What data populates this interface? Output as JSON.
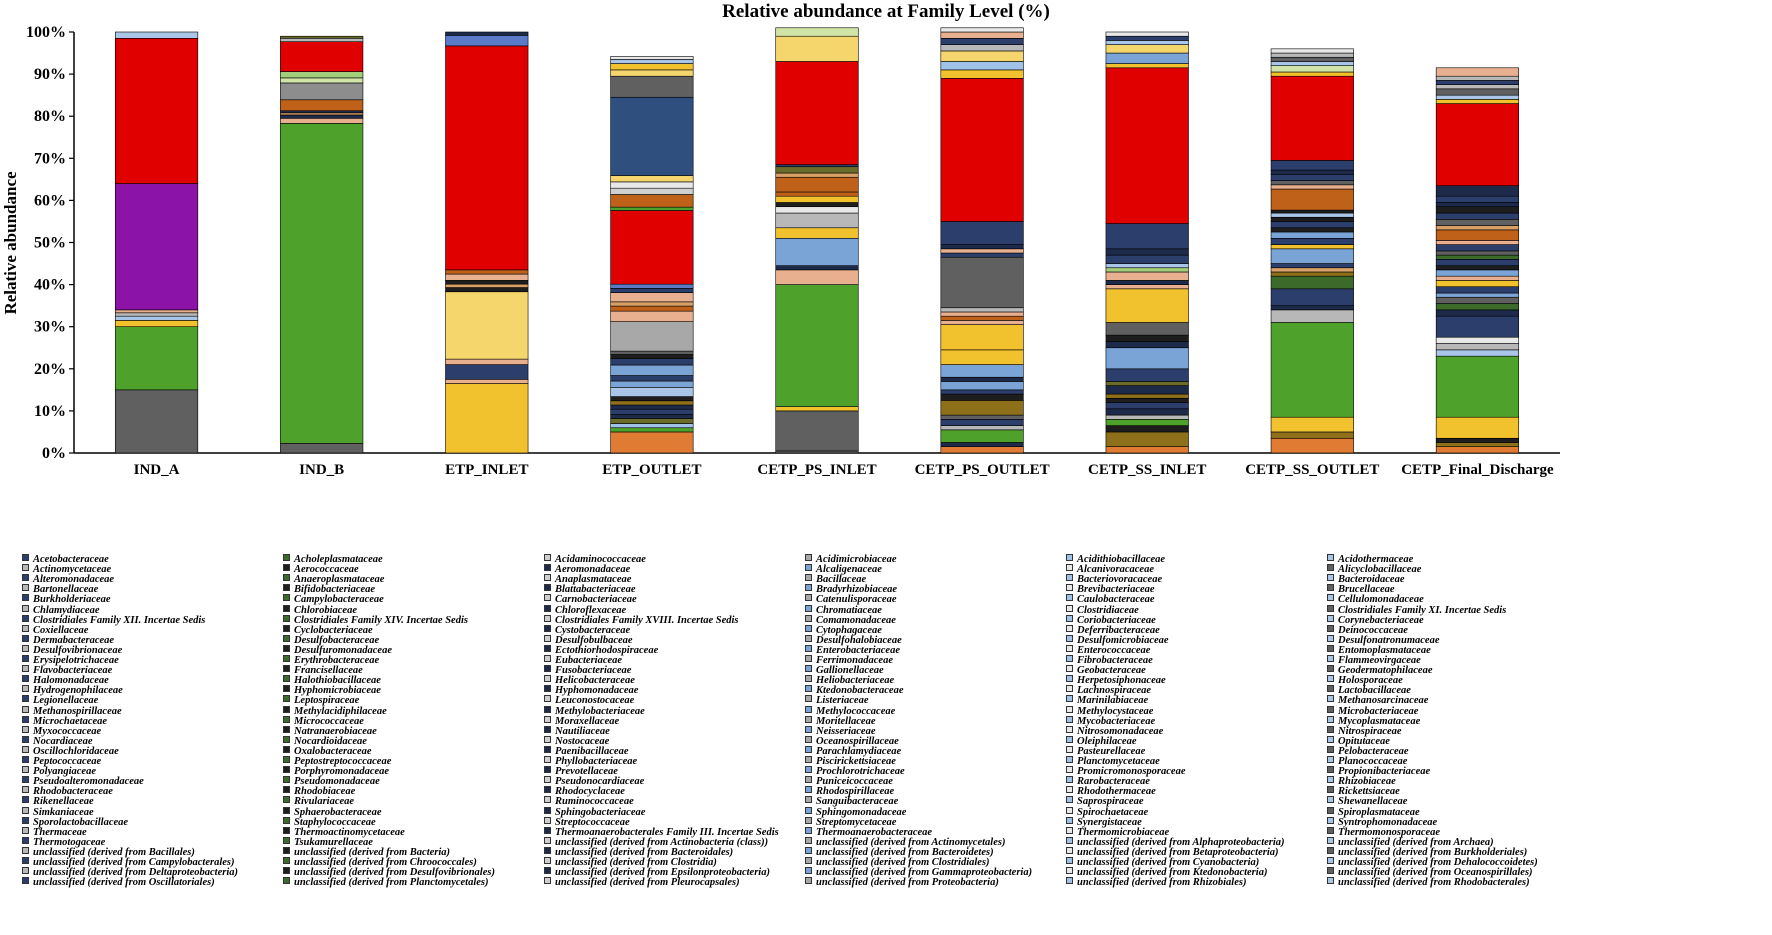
{
  "chart_data": {
    "type": "bar",
    "stacked": true,
    "title": "Relative abundance at Family Level (%)",
    "xlabel": "",
    "ylabel": "Relative abundance",
    "ylim": [
      0,
      100
    ],
    "yticks": [
      "0%",
      "10%",
      "20%",
      "30%",
      "40%",
      "50%",
      "60%",
      "70%",
      "80%",
      "90%",
      "100%"
    ],
    "legend_position": "bottom",
    "categories": [
      "IND_A",
      "IND_B",
      "ETP_INLET",
      "ETP_OUTLET",
      "CETP_PS_INLET",
      "CETP_PS_OUTLET",
      "CETP_SS_INLET",
      "CETP_SS_OUTLET",
      "CETP_Final_Discharge"
    ],
    "stacks": [
      [
        [
          15,
          "#606060"
        ],
        [
          15,
          "#4ea12a"
        ],
        [
          1.5,
          "#f2c12e"
        ],
        [
          1,
          "#a9c6e8"
        ],
        [
          0.8,
          "#b8b8b8"
        ],
        [
          0.7,
          "#e8b08e"
        ],
        [
          30,
          "#8b13a8"
        ],
        [
          34.5,
          "#e00000"
        ],
        [
          1.5,
          "#a9c6e8"
        ]
      ],
      [
        [
          2.3,
          "#606060"
        ],
        [
          76,
          "#4ea12a"
        ],
        [
          1.2,
          "#e8b08e"
        ],
        [
          0.8,
          "#1e2a4a"
        ],
        [
          0.5,
          "#d9a066"
        ],
        [
          0.5,
          "#1e2a4a"
        ],
        [
          2.6,
          "#c0611a"
        ],
        [
          4,
          "#8d8d8d"
        ],
        [
          1.2,
          "#d0e4a8"
        ],
        [
          1.5,
          "#a4cf7a"
        ],
        [
          7.1,
          "#e00000"
        ],
        [
          0.8,
          "#b8b8b8"
        ],
        [
          0.5,
          "#6b6b2a"
        ]
      ],
      [
        [
          16.5,
          "#f2c12e"
        ],
        [
          1,
          "#e8b08e"
        ],
        [
          3.5,
          "#2c3e6c"
        ],
        [
          1.3,
          "#e8b08e"
        ],
        [
          16,
          "#f5d66c"
        ],
        [
          1,
          "#1e1e1e"
        ],
        [
          0.8,
          "#d9a066"
        ],
        [
          0.9,
          "#1e1e1e"
        ],
        [
          1.5,
          "#e8b08e"
        ],
        [
          1,
          "#c0611a"
        ],
        [
          53.2,
          "#e00000"
        ],
        [
          2.5,
          "#5b7bc8"
        ],
        [
          0.8,
          "#1e2a4a"
        ]
      ],
      [
        [
          5,
          "#e07b33"
        ],
        [
          1,
          "#4ea12a"
        ],
        [
          1,
          "#9fc2e8"
        ],
        [
          1.2,
          "#6b6b2a"
        ],
        [
          1,
          "#1e2a4a"
        ],
        [
          1.2,
          "#2c3e6c"
        ],
        [
          1,
          "#1e2a4a"
        ],
        [
          1,
          "#8e6f1a"
        ],
        [
          1,
          "#1e1e1e"
        ],
        [
          2.2,
          "#a9c6e8"
        ],
        [
          1.5,
          "#7aa3d6"
        ],
        [
          1.3,
          "#2c3e6c"
        ],
        [
          2.5,
          "#7aa3d6"
        ],
        [
          1.5,
          "#2c3e6c"
        ],
        [
          1,
          "#1e1e1e"
        ],
        [
          0.8,
          "#606060"
        ],
        [
          7,
          "#a8a8a8"
        ],
        [
          2.5,
          "#e8b08e"
        ],
        [
          1.2,
          "#c0611a"
        ],
        [
          1,
          "#d9a066"
        ],
        [
          2.2,
          "#e8b08e"
        ],
        [
          1,
          "#2c3e6c"
        ],
        [
          1,
          "#5b7bc8"
        ],
        [
          17.5,
          "#e00000"
        ],
        [
          0.8,
          "#4ea12a"
        ],
        [
          3,
          "#c0611a"
        ],
        [
          1.5,
          "#cfcfcf"
        ],
        [
          1.5,
          "#e8e8e8"
        ],
        [
          1.5,
          "#f5d66c"
        ],
        [
          18.6,
          "#2f4f7f"
        ],
        [
          5,
          "#606060"
        ],
        [
          1.5,
          "#f5d66c"
        ],
        [
          1.5,
          "#f2c12e"
        ],
        [
          1,
          "#a9c6e8"
        ],
        [
          0.7,
          "#e8e8e8"
        ]
      ],
      [
        [
          0.5,
          "#606060"
        ],
        [
          9.5,
          "#606060"
        ],
        [
          1,
          "#f2c12e"
        ],
        [
          29,
          "#4ea12a"
        ],
        [
          3.5,
          "#e8b08e"
        ],
        [
          1,
          "#1e2a4a"
        ],
        [
          6.5,
          "#7aa3d6"
        ],
        [
          2.5,
          "#f2c12e"
        ],
        [
          3.5,
          "#b8b8b8"
        ],
        [
          1.5,
          "#e8e8e8"
        ],
        [
          1,
          "#1e1e1e"
        ],
        [
          1.5,
          "#f2c12e"
        ],
        [
          1,
          "#c0611a"
        ],
        [
          3.5,
          "#c0611a"
        ],
        [
          1,
          "#d9a066"
        ],
        [
          1.5,
          "#6b6b2a"
        ],
        [
          0.5,
          "#2c3e6c"
        ],
        [
          24.5,
          "#e00000"
        ],
        [
          6,
          "#f5d66c"
        ],
        [
          2,
          "#d0e4a8"
        ]
      ],
      [
        [
          1.5,
          "#e07b33"
        ],
        [
          1,
          "#1e2a4a"
        ],
        [
          3,
          "#4ea12a"
        ],
        [
          1,
          "#b8b8b8"
        ],
        [
          1.5,
          "#2c3e6c"
        ],
        [
          1,
          "#606060"
        ],
        [
          3.5,
          "#8e6f1a"
        ],
        [
          1.5,
          "#1e1e1e"
        ],
        [
          1,
          "#2c3e6c"
        ],
        [
          2,
          "#7aa3d6"
        ],
        [
          1,
          "#1e2a4a"
        ],
        [
          3,
          "#7aa3d6"
        ],
        [
          3.5,
          "#f2c12e"
        ],
        [
          6,
          "#f2c12e"
        ],
        [
          1,
          "#e8b08e"
        ],
        [
          1,
          "#c0611a"
        ],
        [
          1,
          "#e8b08e"
        ],
        [
          1,
          "#b8b8b8"
        ],
        [
          12,
          "#606060"
        ],
        [
          1,
          "#2c3e6c"
        ],
        [
          1,
          "#e8b08e"
        ],
        [
          1,
          "#1e2a4a"
        ],
        [
          5.5,
          "#2c3e6c"
        ],
        [
          34,
          "#e00000"
        ],
        [
          2,
          "#f2c12e"
        ],
        [
          2,
          "#9fc2e8"
        ],
        [
          2.5,
          "#f5d66c"
        ],
        [
          1.5,
          "#b8b8b8"
        ],
        [
          1.5,
          "#2c3e6c"
        ],
        [
          1.5,
          "#e8b08e"
        ],
        [
          1,
          "#e8e8e8"
        ]
      ],
      [
        [
          1.5,
          "#e07b33"
        ],
        [
          3.5,
          "#8e6f1a"
        ],
        [
          1.5,
          "#1e1e1e"
        ],
        [
          1.5,
          "#4ea12a"
        ],
        [
          1,
          "#b8b8b8"
        ],
        [
          1.5,
          "#1e2a4a"
        ],
        [
          1.5,
          "#2c3e6c"
        ],
        [
          1,
          "#1e1e1e"
        ],
        [
          1,
          "#8e6f1a"
        ],
        [
          2,
          "#1e2a4a"
        ],
        [
          1,
          "#6b6b2a"
        ],
        [
          3,
          "#2c3e6c"
        ],
        [
          5,
          "#7aa3d6"
        ],
        [
          1.5,
          "#1e2a4a"
        ],
        [
          1.5,
          "#1e1e1e"
        ],
        [
          3,
          "#606060"
        ],
        [
          8,
          "#f2c12e"
        ],
        [
          1,
          "#e8b08e"
        ],
        [
          1,
          "#1e2a4a"
        ],
        [
          2,
          "#e8b08e"
        ],
        [
          1,
          "#a4cf7a"
        ],
        [
          1,
          "#a9c6e8"
        ],
        [
          2,
          "#2c3e6c"
        ],
        [
          1.5,
          "#1e2a4a"
        ],
        [
          6,
          "#2c3e6c"
        ],
        [
          37,
          "#e00000"
        ],
        [
          1,
          "#f2c12e"
        ],
        [
          2.5,
          "#7aa3d6"
        ],
        [
          2,
          "#f5d66c"
        ],
        [
          1,
          "#a9c6e8"
        ],
        [
          1,
          "#2c3e6c"
        ],
        [
          1,
          "#e8e8e8"
        ]
      ],
      [
        [
          3.5,
          "#e07b33"
        ],
        [
          1.5,
          "#8e6f1a"
        ],
        [
          3.5,
          "#f2c12e"
        ],
        [
          22.5,
          "#4ea12a"
        ],
        [
          3,
          "#b8b8b8"
        ],
        [
          1,
          "#1e2a4a"
        ],
        [
          4,
          "#2c3e6c"
        ],
        [
          3,
          "#3c6a2a"
        ],
        [
          1,
          "#8e6f1a"
        ],
        [
          1,
          "#d9a066"
        ],
        [
          1,
          "#2c3e6c"
        ],
        [
          3.5,
          "#7aa3d6"
        ],
        [
          1,
          "#f2c12e"
        ],
        [
          1.5,
          "#2c3e6c"
        ],
        [
          1.5,
          "#7aa3d6"
        ],
        [
          1,
          "#1e1e1e"
        ],
        [
          1.5,
          "#2c3e6c"
        ],
        [
          1,
          "#1e1e1e"
        ],
        [
          1,
          "#a9c6e8"
        ],
        [
          0.7,
          "#1e1e1e"
        ],
        [
          5,
          "#c0611a"
        ],
        [
          1,
          "#e8b08e"
        ],
        [
          1,
          "#606060"
        ],
        [
          1.5,
          "#2c3e6c"
        ],
        [
          1,
          "#1e2a4a"
        ],
        [
          2.3,
          "#2c3e6c"
        ],
        [
          20,
          "#e00000"
        ],
        [
          1,
          "#f2c12e"
        ],
        [
          1.5,
          "#d0e4a8"
        ],
        [
          1,
          "#a9c6e8"
        ],
        [
          1,
          "#606060"
        ],
        [
          1,
          "#b8b8b8"
        ],
        [
          1,
          "#e8e8e8"
        ]
      ],
      [
        [
          1.5,
          "#e07b33"
        ],
        [
          1,
          "#8e6f1a"
        ],
        [
          1,
          "#1e1e1e"
        ],
        [
          5,
          "#f2c12e"
        ],
        [
          14.5,
          "#4ea12a"
        ],
        [
          1.5,
          "#a9c6e8"
        ],
        [
          1.5,
          "#b8b8b8"
        ],
        [
          1.5,
          "#e8e8e8"
        ],
        [
          5,
          "#2c3e6c"
        ],
        [
          1.5,
          "#1e2a4a"
        ],
        [
          1.5,
          "#3c6a2a"
        ],
        [
          1.5,
          "#606060"
        ],
        [
          1,
          "#7aa3d6"
        ],
        [
          1.5,
          "#2c3e6c"
        ],
        [
          1.5,
          "#f2c12e"
        ],
        [
          1,
          "#e8b08e"
        ],
        [
          1.5,
          "#7aa3d6"
        ],
        [
          1,
          "#1e1e1e"
        ],
        [
          1.5,
          "#2c3e6c"
        ],
        [
          1,
          "#3c6a2a"
        ],
        [
          1,
          "#606060"
        ],
        [
          1.5,
          "#2c3e6c"
        ],
        [
          1,
          "#e8b08e"
        ],
        [
          2.5,
          "#c0611a"
        ],
        [
          1,
          "#d9a066"
        ],
        [
          1.5,
          "#606060"
        ],
        [
          1.5,
          "#2c3e6c"
        ],
        [
          1.5,
          "#1e1e1e"
        ],
        [
          1,
          "#1e2a4a"
        ],
        [
          1.5,
          "#2c3e6c"
        ],
        [
          2.5,
          "#1e2a4a"
        ],
        [
          19.5,
          "#e00000"
        ],
        [
          1,
          "#f2c12e"
        ],
        [
          1,
          "#a9c6e8"
        ],
        [
          1.5,
          "#606060"
        ],
        [
          1,
          "#b8b8b8"
        ],
        [
          1,
          "#2c3e6c"
        ],
        [
          1,
          "#b8b8b8"
        ],
        [
          2,
          "#e8b08e"
        ]
      ]
    ],
    "legend_colors": [
      "#2c3e6c",
      "#e07b33",
      "#a8a8a8",
      "#f2c12e",
      "#5b7bc8",
      "#4ea12a",
      "#1e2a4a",
      "#c0611a",
      "#606060",
      "#8e6f1a",
      "#3c6a2a",
      "#2f4f7f",
      "#9fc2e8",
      "#e8b08e",
      "#b8b8b8",
      "#f5d66c",
      "#7aa3d6",
      "#a4cf7a",
      "#8d8d8d",
      "#d9a066",
      "#cfcfcf",
      "#6b6b2a",
      "#a9c6e8",
      "#d0e4a8",
      "#1e1e1e",
      "#e00000",
      "#e8e8e8",
      "#8b13a8"
    ],
    "legend": [
      "Acetobacteraceae",
      "Acholeplasmataceae",
      "Acidaminococcaceae",
      "Acidimicrobiaceae",
      "Acidithiobacillaceae",
      "Acidothermaceae",
      "Actinomycetaceae",
      "Aerococcaceae",
      "Aeromonadaceae",
      "Alcaligenaceae",
      "Alcanivoracaceae",
      "Alicyclobacillaceae",
      "Alteromonadaceae",
      "Anaeroplasmataceae",
      "Anaplasmataceae",
      "Bacillaceae",
      "Bacteriovoracaceae",
      "Bacteroidaceae",
      "Bartonellaceae",
      "Bifidobacteriaceae",
      "Blattabacteriaceae",
      "Bradyrhizobiaceae",
      "Brevibacteriaceae",
      "Brucellaceae",
      "Burkholderiaceae",
      "Campylobacteraceae",
      "Carnobacteriaceae",
      "Catenulisporaceae",
      "Caulobacteraceae",
      "Cellulomonadaceae",
      "Chlamydiaceae",
      "Chlorobiaceae",
      "Chloroflexaceae",
      "Chromatiaceae",
      "Clostridiaceae",
      "Clostridiales Family XI. Incertae Sedis",
      "Clostridiales Family XII. Incertae Sedis",
      "Clostridiales Family XIV. Incertae Sedis",
      "Clostridiales Family XVIII. Incertae Sedis",
      "Comamonadaceae",
      "Coriobacteriaceae",
      "Corynebacteriaceae",
      "Coxiellaceae",
      "Cyclobacteriaceae",
      "Cystobacteraceae",
      "Cytophagaceae",
      "Deferribacteraceae",
      "Deinococcaceae",
      "Dermabacteraceae",
      "Desulfobacteraceae",
      "Desulfobulbaceae",
      "Desulfohalobiaceae",
      "Desulfomicrobiaceae",
      "Desulfonatronumaceae",
      "Desulfovibrionaceae",
      "Desulfuromonadaceae",
      "Ectothiorhodospiraceae",
      "Enterobacteriaceae",
      "Enterococcaceae",
      "Entomoplasmataceae",
      "Erysipelotrichaceae",
      "Erythrobacteraceae",
      "Eubacteriaceae",
      "Ferrimonadaceae",
      "Fibrobacteraceae",
      "Flammeovirgaceae",
      "Flavobacteriaceae",
      "Francisellaceae",
      "Fusobacteriaceae",
      "Gallionellaceae",
      "Geobacteraceae",
      "Geodermatophilaceae",
      "Halomonadaceae",
      "Halothiobacillaceae",
      "Helicobacteraceae",
      "Heliobacteriaceae",
      "Herpetosiphonaceae",
      "Holosporaceae",
      "Hydrogenophilaceae",
      "Hyphomicrobiaceae",
      "Hyphomonadaceae",
      "Ktedonobacteraceae",
      "Lachnospiraceae",
      "Lactobacillaceae",
      "Legionellaceae",
      "Leptospiraceae",
      "Leuconostocaceae",
      "Listeriaceae",
      "Marinilabiaceae",
      "Methanosarcinaceae",
      "Methanospirillaceae",
      "Methylacidiphilaceae",
      "Methylobacteriaceae",
      "Methylococcaceae",
      "Methylocystaceae",
      "Microbacteriaceae",
      "Microchaetaceae",
      "Micrococcaceae",
      "Moraxellaceae",
      "Moritellaceae",
      "Mycobacteriaceae",
      "Mycoplasmataceae",
      "Myxococcaceae",
      "Natranaerobiaceae",
      "Nautiliaceae",
      "Neisseriaceae",
      "Nitrosomonadaceae",
      "Nitrospiraceae",
      "Nocardiaceae",
      "Nocardioidaceae",
      "Nostocaceae",
      "Oceanospirillaceae",
      "Oleiphilaceae",
      "Opitutaceae",
      "Oscillochloridaceae",
      "Oxalobacteraceae",
      "Paenibacillaceae",
      "Parachlamydiaceae",
      "Pasteurellaceae",
      "Pelobacteraceae",
      "Peptococcaceae",
      "Peptostreptococcaceae",
      "Phyllobacteriaceae",
      "Piscirickettsiaceae",
      "Planctomycetaceae",
      "Planococcaceae",
      "Polyangiaceae",
      "Porphyromonadaceae",
      "Prevotellaceae",
      "Prochlorotrichaceae",
      "Promicromonosporaceae",
      "Propionibacteriaceae",
      "Pseudoalteromonadaceae",
      "Pseudomonadaceae",
      "Pseudonocardiaceae",
      "Puniceicoccaceae",
      "Rarobacteraceae",
      "Rhizobiaceae",
      "Rhodobacteraceae",
      "Rhodobiaceae",
      "Rhodocyclaceae",
      "Rhodospirillaceae",
      "Rhodothermaceae",
      "Rickettsiaceae",
      "Rikenellaceae",
      "Rivulariaceae",
      "Ruminococcaceae",
      "Sanguibacteraceae",
      "Saprospiraceae",
      "Shewanellaceae",
      "Simkaniaceae",
      "Sphaerobacteraceae",
      "Sphingobacteriaceae",
      "Sphingomonadaceae",
      "Spirochaetaceae",
      "Spiroplasmataceae",
      "Sporolactobacillaceae",
      "Staphylococcaceae",
      "Streptococcaceae",
      "Streptomycetaceae",
      "Synergistaceae",
      "Syntrophomonadaceae",
      "Thermaceae",
      "Thermoactinomycetaceae",
      "Thermoanaerobacterales Family III. Incertae Sedis",
      "Thermoanaerobacteraceae",
      "Thermomicrobiaceae",
      "Thermomonosporaceae",
      "Thermotogaceae",
      "Tsukamurellaceae",
      "unclassified (derived from Actinobacteria (class))",
      "unclassified (derived from Actinomycetales)",
      "unclassified (derived from Alphaproteobacteria)",
      "unclassified (derived from Archaea)",
      "unclassified (derived from Bacillales)",
      "unclassified (derived from Bacteria)",
      "unclassified (derived from Bacteroidales)",
      "unclassified (derived from Bacteroidetes)",
      "unclassified (derived from Betaproteobacteria)",
      "unclassified (derived from Burkholderiales)",
      "unclassified (derived from Campylobacterales)",
      "unclassified (derived from Chroococcales)",
      "unclassified (derived from Clostridia)",
      "unclassified (derived from Clostridiales)",
      "unclassified (derived from Cyanobacteria)",
      "unclassified (derived from Dehalococcoidetes)",
      "unclassified (derived from Deltaproteobacteria)",
      "unclassified (derived from Desulfovibrionales)",
      "unclassified (derived from Epsilonproteobacteria)",
      "unclassified (derived from Gammaproteobacteria)",
      "unclassified (derived from Ktedonobacteria)",
      "unclassified (derived from Oceanospirillales)",
      "unclassified (derived from Oscillatoriales)",
      "unclassified (derived from Planctomycetales)",
      "unclassified (derived from Pleurocapsales)",
      "unclassified (derived from Proteobacteria)",
      "unclassified (derived from Rhizobiales)",
      "unclassified (derived from Rhodobacterales)"
    ]
  }
}
